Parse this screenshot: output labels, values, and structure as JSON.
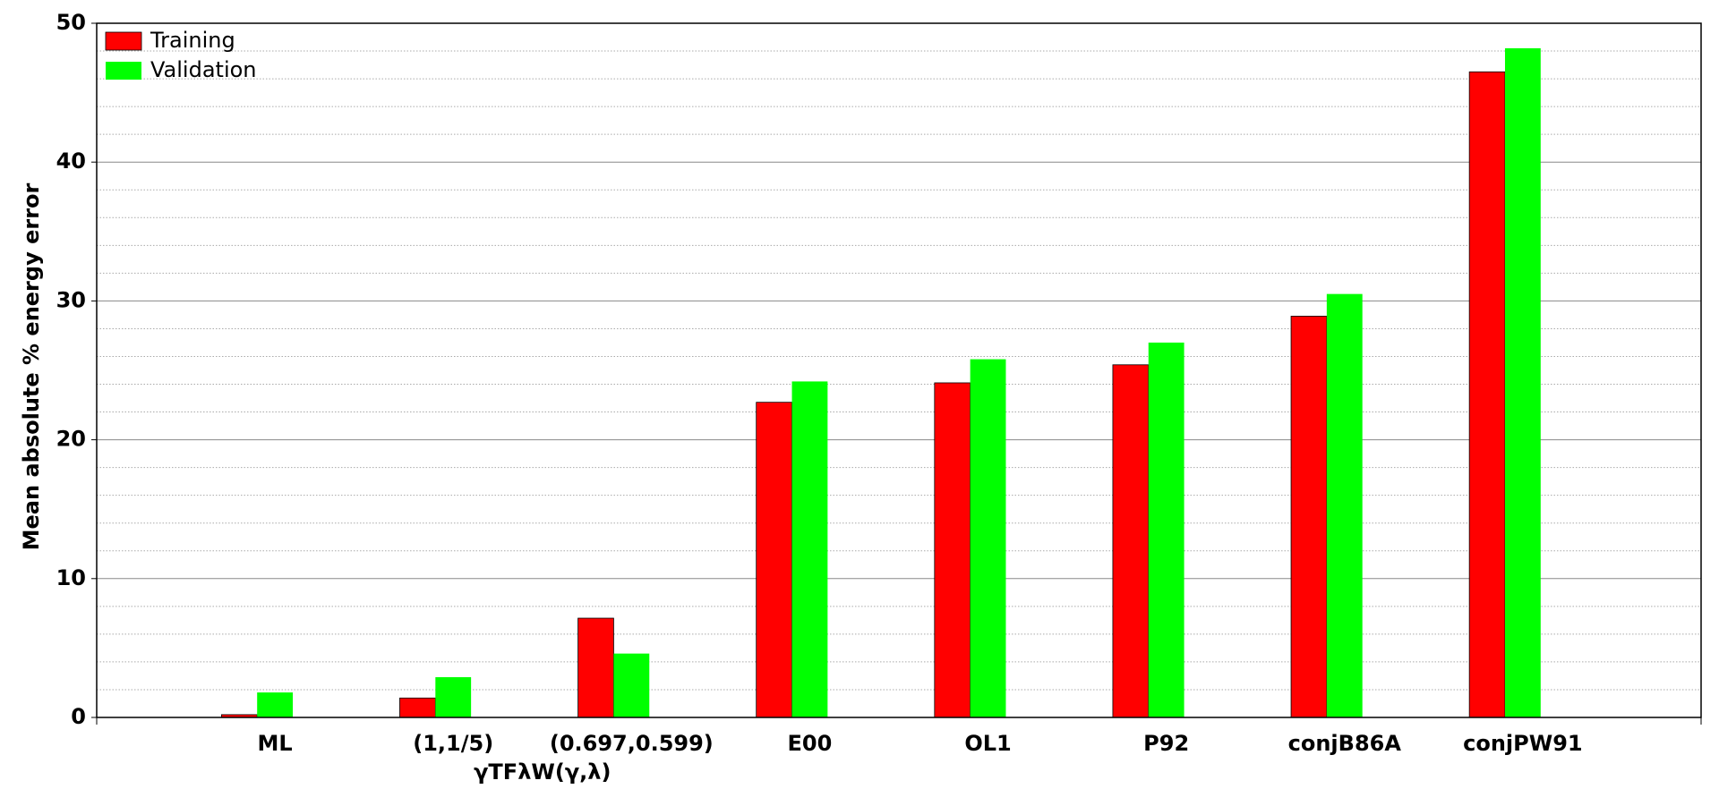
{
  "chart_data": {
    "type": "bar",
    "ylabel": "Mean absolute % energy error",
    "categories": [
      "ML",
      "(1,1/5)",
      "(0.697,0.599)",
      "E00",
      "OL1",
      "P92",
      "conjB86A",
      "conjPW91"
    ],
    "x_group_label": "γTFλW(γ,λ)",
    "series": [
      {
        "name": "Training",
        "color": "#ff0000",
        "values": [
          0.2,
          1.4,
          7.15,
          22.7,
          24.1,
          25.4,
          28.9,
          46.5
        ]
      },
      {
        "name": "Validation",
        "color": "#00ff00",
        "values": [
          1.8,
          2.9,
          4.6,
          24.2,
          25.8,
          27.0,
          30.5,
          48.2
        ]
      }
    ],
    "ylim": [
      0,
      50
    ],
    "yticks": [
      0,
      10,
      20,
      30,
      40,
      50
    ],
    "minor_yticks": [
      2,
      4,
      6,
      8,
      12,
      14,
      16,
      18,
      22,
      24,
      26,
      28,
      32,
      34,
      36,
      38,
      42,
      44,
      46,
      48
    ],
    "grid": true,
    "legend": "upper left"
  }
}
